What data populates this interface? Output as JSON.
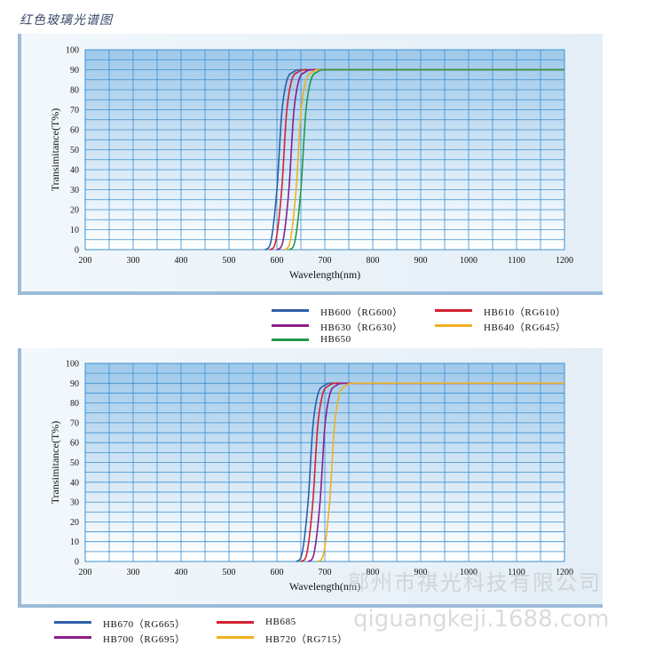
{
  "page": {
    "title": "红色玻璃光谱图",
    "watermark_text": "鄗州市祺光科技有限公司",
    "watermark_url": "qiguangkeji.1688.com"
  },
  "chart_data": [
    {
      "type": "line",
      "xlabel": "Wavelength(nm)",
      "ylabel": "Transimitance(T%)",
      "xlim": [
        200,
        1200
      ],
      "ylim": [
        0,
        100
      ],
      "x_ticks": [
        200,
        300,
        400,
        500,
        600,
        700,
        800,
        900,
        1000,
        1100,
        1200
      ],
      "y_ticks": [
        0,
        10,
        20,
        30,
        40,
        50,
        60,
        70,
        80,
        90,
        100
      ],
      "grid": true,
      "legend_position": "below",
      "series": [
        {
          "name": "HB600（RG600）",
          "color": "#2e5fa8",
          "x": [
            575,
            585,
            600,
            610,
            620,
            635,
            650,
            1200
          ],
          "y": [
            0,
            2,
            30,
            68,
            84,
            89,
            90,
            90
          ]
        },
        {
          "name": "HB610（RG610）",
          "color": "#d42030",
          "x": [
            585,
            595,
            610,
            620,
            630,
            645,
            660,
            1200
          ],
          "y": [
            0,
            2,
            30,
            68,
            84,
            89,
            90,
            90
          ]
        },
        {
          "name": "HB630（RG630）",
          "color": "#8a1f8a",
          "x": [
            600,
            610,
            625,
            635,
            645,
            660,
            675,
            1200
          ],
          "y": [
            0,
            2,
            30,
            68,
            84,
            89,
            90,
            90
          ]
        },
        {
          "name": "HB640（RG645）",
          "color": "#f0b020",
          "x": [
            615,
            625,
            640,
            650,
            660,
            675,
            690,
            1200
          ],
          "y": [
            0,
            2,
            30,
            68,
            84,
            89,
            90,
            90
          ]
        },
        {
          "name": "HB650",
          "color": "#1f9a48",
          "x": [
            625,
            635,
            650,
            660,
            670,
            685,
            700,
            1200
          ],
          "y": [
            0,
            2,
            30,
            68,
            84,
            89,
            90,
            90
          ]
        }
      ]
    },
    {
      "type": "line",
      "xlabel": "Wavelength(nm)",
      "ylabel": "Transimitance(T%)",
      "xlim": [
        200,
        1200
      ],
      "ylim": [
        0,
        100
      ],
      "x_ticks": [
        200,
        300,
        400,
        500,
        600,
        700,
        800,
        900,
        1000,
        1100,
        1200
      ],
      "y_ticks": [
        0,
        10,
        20,
        30,
        40,
        50,
        60,
        70,
        80,
        90,
        100
      ],
      "grid": true,
      "legend_position": "below",
      "series": [
        {
          "name": "HB670（RG665）",
          "color": "#2e5fa8",
          "x": [
            640,
            650,
            665,
            675,
            685,
            700,
            715,
            1200
          ],
          "y": [
            0,
            2,
            30,
            68,
            84,
            89,
            90,
            90
          ]
        },
        {
          "name": "HB685",
          "color": "#d42030",
          "x": [
            650,
            660,
            675,
            685,
            695,
            710,
            725,
            1200
          ],
          "y": [
            0,
            2,
            30,
            68,
            84,
            89,
            90,
            90
          ]
        },
        {
          "name": "HB700（RG695）",
          "color": "#8a1f8a",
          "x": [
            665,
            675,
            690,
            700,
            710,
            725,
            740,
            1200
          ],
          "y": [
            0,
            2,
            30,
            68,
            84,
            89,
            90,
            90
          ]
        },
        {
          "name": "HB720（RG715）",
          "color": "#f0b020",
          "x": [
            685,
            695,
            710,
            720,
            730,
            745,
            760,
            1200
          ],
          "y": [
            0,
            2,
            30,
            68,
            84,
            89,
            90,
            90
          ]
        }
      ]
    }
  ]
}
